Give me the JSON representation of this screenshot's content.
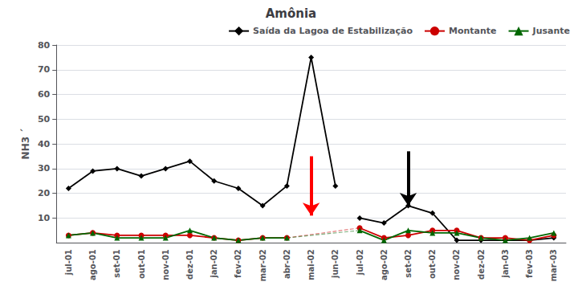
{
  "chart_data": {
    "type": "line",
    "title": "Amônia",
    "ylabel": "NH3 ´",
    "categories": [
      "jul-01",
      "ago-01",
      "set-01",
      "out-01",
      "nov-01",
      "dez-01",
      "jan-02",
      "fev-02",
      "mar-02",
      "abr-02",
      "mai-02",
      "jun-02",
      "jul-02",
      "ago-02",
      "set-02",
      "out-02",
      "nov-02",
      "dez-02",
      "jan-03",
      "fev-03",
      "mar-03"
    ],
    "series": [
      {
        "name": "Saída da Lagoa de Estabilização",
        "color": "#000000",
        "marker": "diamond",
        "line_style": "solid",
        "values": [
          22,
          29,
          30,
          27,
          30,
          33,
          25,
          22,
          15,
          23,
          75,
          23,
          null,
          null,
          null,
          null,
          null,
          null,
          null,
          null,
          null
        ]
      },
      {
        "name": "Saída da Lagoa de Estabilização",
        "color": "#000000",
        "marker": "diamond",
        "line_style": "solid",
        "values": [
          null,
          null,
          null,
          null,
          null,
          null,
          null,
          null,
          null,
          null,
          null,
          null,
          10,
          8,
          15,
          12,
          1,
          1,
          1,
          1,
          2
        ]
      },
      {
        "name": "Montante",
        "color": "#cc0000",
        "marker": "circle",
        "line_style": "solid",
        "values": [
          3,
          4,
          3,
          3,
          3,
          3,
          2,
          1,
          2,
          2,
          null,
          null,
          null,
          null,
          null,
          null,
          null,
          null,
          null,
          null,
          null
        ]
      },
      {
        "name": "Montante",
        "color": "#cc0000",
        "marker": "circle",
        "line_style": "solid",
        "values": [
          null,
          null,
          null,
          null,
          null,
          null,
          null,
          null,
          null,
          null,
          null,
          null,
          6,
          2,
          3,
          5,
          5,
          2,
          2,
          1,
          3
        ]
      },
      {
        "name": "Montante",
        "color": "#cc0000",
        "marker": "none",
        "line_style": "dashed",
        "values": [
          null,
          null,
          null,
          null,
          null,
          null,
          null,
          null,
          null,
          2,
          null,
          null,
          6,
          null,
          null,
          null,
          null,
          null,
          null,
          null,
          null
        ]
      },
      {
        "name": "Jusante",
        "color": "#006600",
        "marker": "triangle",
        "line_style": "solid",
        "values": [
          3,
          4,
          2,
          2,
          2,
          5,
          2,
          1,
          2,
          2,
          null,
          null,
          null,
          null,
          null,
          null,
          null,
          null,
          null,
          null,
          null
        ]
      },
      {
        "name": "Jusante",
        "color": "#006600",
        "marker": "triangle",
        "line_style": "solid",
        "values": [
          null,
          null,
          null,
          null,
          null,
          null,
          null,
          null,
          null,
          null,
          null,
          null,
          5,
          1,
          5,
          4,
          4,
          2,
          1,
          2,
          4
        ]
      },
      {
        "name": "Jusante",
        "color": "#006600",
        "marker": "none",
        "line_style": "dashed",
        "values": [
          null,
          null,
          null,
          null,
          null,
          null,
          null,
          null,
          null,
          2,
          null,
          null,
          5,
          null,
          null,
          null,
          null,
          null,
          null,
          null,
          null
        ]
      }
    ],
    "annotations": [
      {
        "type": "arrow",
        "x": "mai-02",
        "y_start": 35,
        "y_end": 11,
        "color": "red"
      },
      {
        "type": "arrow",
        "x": "set-02",
        "y_start": 37,
        "y_end": 15,
        "color": "black"
      }
    ],
    "ylim": [
      0,
      80
    ],
    "yticks": [
      10,
      20,
      30,
      40,
      50,
      60,
      70,
      80
    ],
    "grid": true,
    "legend": "upper right"
  }
}
